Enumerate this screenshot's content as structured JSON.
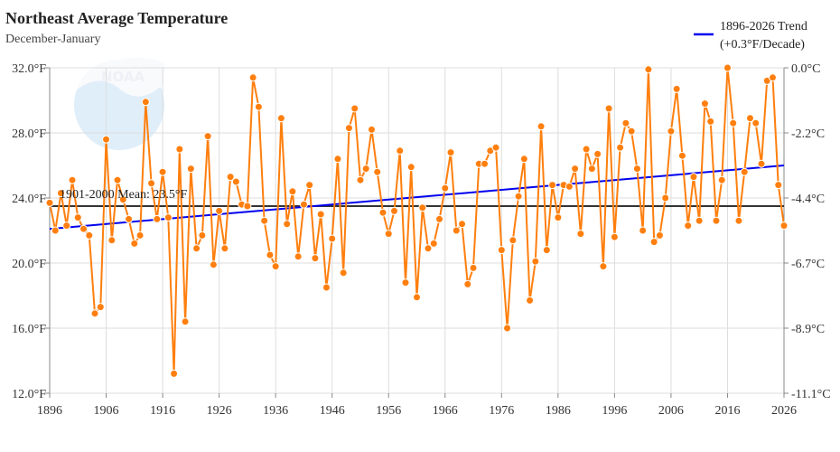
{
  "chart_data": {
    "type": "line",
    "title": "Northeast Average Temperature",
    "subtitle": "December-January",
    "x_ticks": [
      "1896",
      "1906",
      "1916",
      "1926",
      "1936",
      "1946",
      "1956",
      "1966",
      "1976",
      "1986",
      "1996",
      "2006",
      "2016",
      "2026"
    ],
    "y_ticks_left": [
      "12.0°F",
      "16.0°F",
      "20.0°F",
      "24.0°F",
      "28.0°F",
      "32.0°F"
    ],
    "y_ticks_right": [
      "-11.1°C",
      "-8.9°C",
      "-6.7°C",
      "-4.4°C",
      "-2.2°C",
      "0.0°C"
    ],
    "xlim": [
      1896,
      2026
    ],
    "ylim": [
      12,
      32
    ],
    "grid": true,
    "x_start": 1896,
    "values": [
      23.7,
      22.0,
      24.3,
      22.3,
      25.1,
      22.8,
      22.1,
      21.7,
      16.9,
      17.3,
      27.6,
      21.4,
      25.1,
      23.9,
      22.7,
      21.2,
      21.7,
      29.9,
      24.9,
      22.7,
      25.6,
      22.8,
      13.2,
      27.0,
      16.4,
      25.8,
      20.9,
      21.7,
      27.8,
      19.9,
      23.2,
      20.9,
      25.3,
      25.0,
      23.6,
      23.5,
      31.4,
      29.6,
      22.6,
      20.5,
      19.8,
      28.9,
      22.4,
      24.4,
      20.4,
      23.6,
      24.8,
      20.3,
      23.0,
      18.5,
      21.5,
      26.4,
      19.4,
      28.3,
      29.5,
      25.1,
      25.8,
      28.2,
      25.6,
      23.1,
      21.8,
      23.2,
      26.9,
      18.8,
      25.9,
      17.9,
      23.4,
      20.9,
      21.2,
      22.7,
      24.6,
      26.8,
      22.0,
      22.4,
      18.7,
      19.7,
      26.1,
      26.1,
      26.9,
      27.1,
      20.8,
      16.0,
      21.4,
      24.1,
      26.4,
      17.7,
      20.1,
      28.4,
      20.8,
      24.8,
      22.8,
      24.8,
      24.7,
      25.8,
      21.8,
      27.0,
      25.8,
      26.7,
      19.8,
      29.5,
      21.6,
      27.1,
      28.6,
      28.1,
      25.8,
      22.0,
      31.9,
      21.3,
      21.7,
      24.0,
      28.1,
      30.7,
      26.6,
      22.3,
      25.3,
      22.6,
      29.8,
      28.7,
      22.6,
      25.1,
      32.0,
      28.6,
      22.6,
      25.6,
      28.9,
      28.6,
      26.1,
      31.2,
      31.4,
      24.8,
      22.3
    ],
    "mean": {
      "label": "1901-2000 Mean: 23.5°F",
      "value": 23.5,
      "color": "#333333"
    },
    "trend": {
      "label_line1": "1896-2026 Trend",
      "label_line2": "(+0.3°F/Decade)",
      "start": [
        1896,
        22.1
      ],
      "end": [
        2026,
        26.0
      ],
      "color": "#0000ee"
    },
    "series_color": "#ff7f0e",
    "legend_position": "top-right",
    "watermark": "NOAA"
  }
}
